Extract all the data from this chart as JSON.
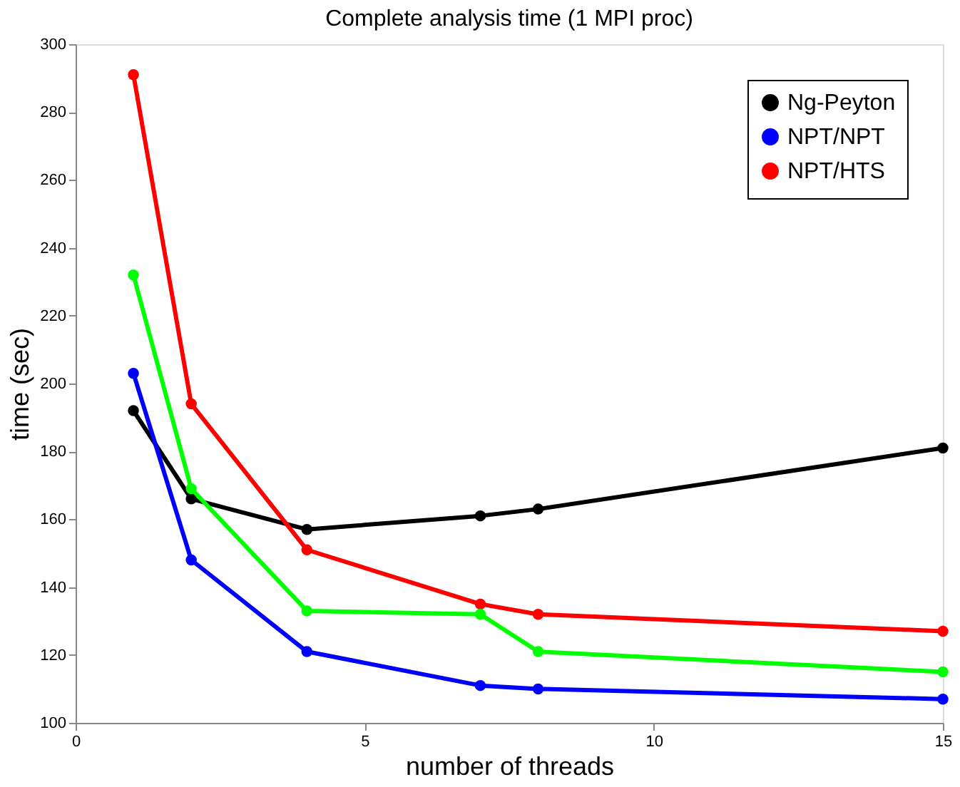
{
  "chart_data": {
    "type": "line",
    "title": "Complete analysis time (1 MPI proc)",
    "xlabel": "number of threads",
    "ylabel": "time (sec)",
    "x": [
      1,
      2,
      4,
      7,
      8,
      15
    ],
    "series": [
      {
        "name": "Ng-Peyton",
        "color": "#000000",
        "values": [
          192,
          166,
          157,
          161,
          163,
          181
        ]
      },
      {
        "name": "NPT/NPT",
        "color": "#0000ff",
        "values": [
          203,
          148,
          121,
          111,
          110,
          107
        ]
      },
      {
        "name": "NPT/HTS",
        "color": "#ff0000",
        "values": [
          291,
          194,
          151,
          135,
          132,
          127
        ]
      },
      {
        "color": "#00ff00",
        "values": [
          232,
          169,
          133,
          132,
          121,
          115
        ]
      }
    ],
    "xlim": [
      0,
      15
    ],
    "xticks": [
      0,
      5,
      10,
      15
    ],
    "ylim": [
      100,
      300
    ],
    "yticks": [
      100,
      120,
      140,
      160,
      180,
      200,
      220,
      240,
      260,
      280,
      300
    ],
    "grid": false,
    "legend": "top right",
    "marker": "circle",
    "line_style": "solid"
  }
}
